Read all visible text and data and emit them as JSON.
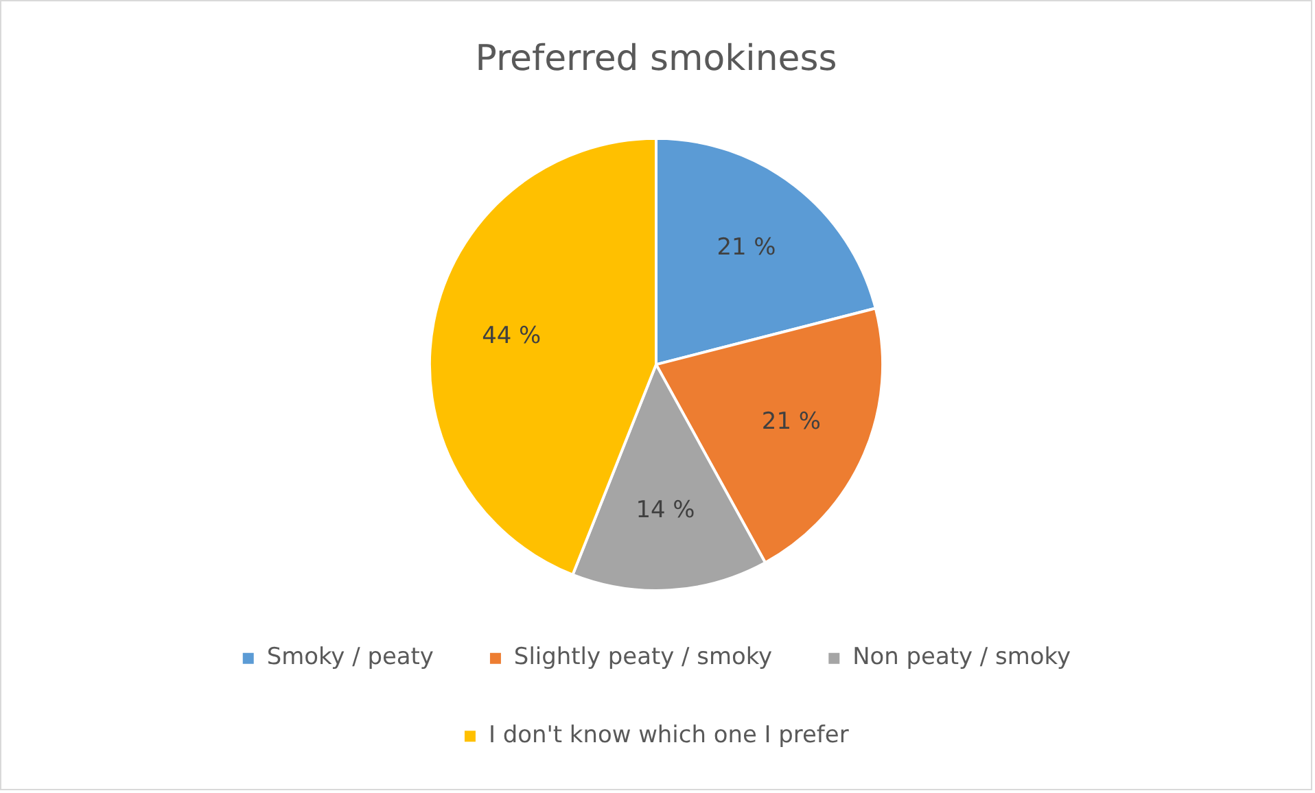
{
  "chart_data": {
    "type": "pie",
    "title": "Preferred smokiness",
    "categories": [
      "Smoky / peaty",
      "Slightly peaty / smoky",
      "Non peaty / smoky",
      "I don't know which one I prefer"
    ],
    "values": [
      21,
      21,
      14,
      44
    ],
    "value_labels": [
      "21 %",
      "21 %",
      "14 %",
      "44 %"
    ],
    "colors": [
      "#5b9bd5",
      "#ed7d31",
      "#a5a5a5",
      "#ffc000"
    ],
    "legend": "bottom"
  }
}
